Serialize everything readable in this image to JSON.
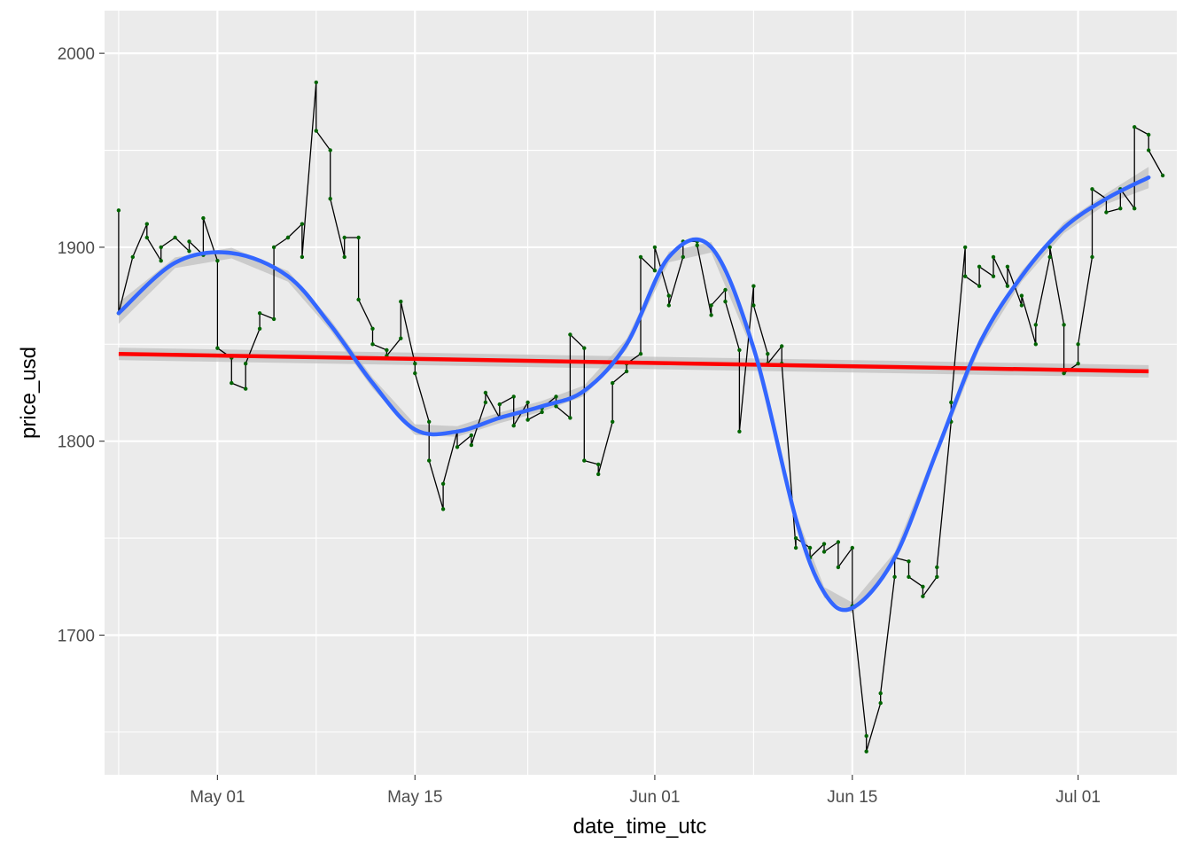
{
  "chart_data": {
    "type": "line",
    "title": "",
    "xlabel": "date_time_utc",
    "ylabel": "price_usd",
    "x_ticks": [
      "May 01",
      "May 15",
      "Jun 01",
      "Jun 15",
      "Jul 01"
    ],
    "x_tick_dates": [
      "2023-05-01",
      "2023-05-15",
      "2023-06-01",
      "2023-06-15",
      "2023-07-01"
    ],
    "y_ticks": [
      1700,
      1800,
      1900,
      2000
    ],
    "xlim": [
      "2023-04-23",
      "2023-07-08"
    ],
    "ylim": [
      1628,
      2022
    ],
    "grid": true,
    "legend": "none",
    "colors": {
      "panel": "#ebebeb",
      "grid": "#ffffff",
      "price_line": "#000000",
      "price_points": "#006400",
      "smooth": "#3366ff",
      "linear": "#ff0000",
      "confidence_band": "#bdbdbd"
    },
    "series": [
      {
        "kind": "price",
        "x": [
          "2023-04-24",
          "2023-04-24",
          "2023-04-25",
          "2023-04-26",
          "2023-04-26",
          "2023-04-27",
          "2023-04-27",
          "2023-04-28",
          "2023-04-29",
          "2023-04-29",
          "2023-04-30",
          "2023-04-30",
          "2023-05-01",
          "2023-05-01",
          "2023-05-02",
          "2023-05-02",
          "2023-05-03",
          "2023-05-03",
          "2023-05-04",
          "2023-05-04",
          "2023-05-05",
          "2023-05-05",
          "2023-05-06",
          "2023-05-06",
          "2023-05-07",
          "2023-05-07",
          "2023-05-08",
          "2023-05-08",
          "2023-05-09",
          "2023-05-09",
          "2023-05-10",
          "2023-05-10",
          "2023-05-11",
          "2023-05-11",
          "2023-05-12",
          "2023-05-12",
          "2023-05-13",
          "2023-05-13",
          "2023-05-14",
          "2023-05-14",
          "2023-05-15",
          "2023-05-15",
          "2023-05-16",
          "2023-05-16",
          "2023-05-17",
          "2023-05-17",
          "2023-05-18",
          "2023-05-18",
          "2023-05-19",
          "2023-05-19",
          "2023-05-20",
          "2023-05-20",
          "2023-05-21",
          "2023-05-21",
          "2023-05-22",
          "2023-05-22",
          "2023-05-23",
          "2023-05-23",
          "2023-05-24",
          "2023-05-24",
          "2023-05-25",
          "2023-05-25",
          "2023-05-26",
          "2023-05-26",
          "2023-05-27",
          "2023-05-27",
          "2023-05-28",
          "2023-05-28",
          "2023-05-29",
          "2023-05-29",
          "2023-05-30",
          "2023-05-30",
          "2023-05-31",
          "2023-05-31",
          "2023-06-01",
          "2023-06-01",
          "2023-06-02",
          "2023-06-02",
          "2023-06-03",
          "2023-06-03",
          "2023-06-04",
          "2023-06-04",
          "2023-06-05",
          "2023-06-05",
          "2023-06-06",
          "2023-06-06",
          "2023-06-07",
          "2023-06-07",
          "2023-06-08",
          "2023-06-08",
          "2023-06-09",
          "2023-06-09",
          "2023-06-10",
          "2023-06-10",
          "2023-06-11",
          "2023-06-11",
          "2023-06-12",
          "2023-06-12",
          "2023-06-13",
          "2023-06-13",
          "2023-06-14",
          "2023-06-14",
          "2023-06-15",
          "2023-06-15",
          "2023-06-16",
          "2023-06-16",
          "2023-06-17",
          "2023-06-17",
          "2023-06-18",
          "2023-06-18",
          "2023-06-19",
          "2023-06-19",
          "2023-06-20",
          "2023-06-20",
          "2023-06-21",
          "2023-06-21",
          "2023-06-22",
          "2023-06-22",
          "2023-06-23",
          "2023-06-23",
          "2023-06-24",
          "2023-06-24",
          "2023-06-25",
          "2023-06-25",
          "2023-06-26",
          "2023-06-26",
          "2023-06-27",
          "2023-06-27",
          "2023-06-28",
          "2023-06-28",
          "2023-06-29",
          "2023-06-29",
          "2023-06-30",
          "2023-06-30",
          "2023-07-01",
          "2023-07-01",
          "2023-07-02",
          "2023-07-02",
          "2023-07-03",
          "2023-07-03",
          "2023-07-04",
          "2023-07-04",
          "2023-07-05",
          "2023-07-05",
          "2023-07-06",
          "2023-07-06",
          "2023-07-07"
        ],
        "y": [
          1919,
          1866,
          1895,
          1912,
          1905,
          1893,
          1900,
          1905,
          1898,
          1903,
          1896,
          1915,
          1893,
          1848,
          1843,
          1830,
          1827,
          1840,
          1858,
          1866,
          1863,
          1900,
          1905,
          1905,
          1912,
          1895,
          1985,
          1960,
          1950,
          1925,
          1895,
          1905,
          1905,
          1873,
          1858,
          1850,
          1847,
          1844,
          1853,
          1872,
          1840,
          1835,
          1810,
          1790,
          1765,
          1778,
          1805,
          1797,
          1803,
          1798,
          1820,
          1825,
          1812,
          1819,
          1823,
          1808,
          1820,
          1811,
          1815,
          1817,
          1823,
          1818,
          1812,
          1855,
          1848,
          1790,
          1788,
          1783,
          1810,
          1830,
          1836,
          1840,
          1845,
          1895,
          1888,
          1900,
          1875,
          1870,
          1895,
          1903,
          1903,
          1901,
          1865,
          1870,
          1878,
          1872,
          1847,
          1805,
          1880,
          1870,
          1845,
          1840,
          1849,
          1840,
          1745,
          1750,
          1745,
          1740,
          1747,
          1743,
          1748,
          1735,
          1745,
          1715,
          1648,
          1640,
          1665,
          1670,
          1730,
          1740,
          1738,
          1730,
          1725,
          1720,
          1730,
          1735,
          1810,
          1820,
          1900,
          1885,
          1880,
          1890,
          1885,
          1895,
          1880,
          1890,
          1870,
          1875,
          1850,
          1860,
          1895,
          1900,
          1860,
          1835,
          1840,
          1850,
          1895,
          1930,
          1925,
          1918,
          1920,
          1930,
          1920,
          1962,
          1958,
          1950,
          1937
        ]
      },
      {
        "kind": "loess",
        "x": [
          "2023-04-24",
          "2023-04-28",
          "2023-05-02",
          "2023-05-06",
          "2023-05-09",
          "2023-05-12",
          "2023-05-15",
          "2023-05-18",
          "2023-05-21",
          "2023-05-24",
          "2023-05-27",
          "2023-05-30",
          "2023-06-02",
          "2023-06-05",
          "2023-06-08",
          "2023-06-11",
          "2023-06-13",
          "2023-06-15",
          "2023-06-18",
          "2023-06-21",
          "2023-06-24",
          "2023-06-27",
          "2023-06-30",
          "2023-07-03",
          "2023-07-06"
        ],
        "y": [
          1866,
          1892,
          1897,
          1885,
          1860,
          1830,
          1806,
          1805,
          1812,
          1818,
          1826,
          1850,
          1895,
          1900,
          1848,
          1760,
          1722,
          1714,
          1740,
          1795,
          1850,
          1885,
          1910,
          1925,
          1936
        ]
      },
      {
        "kind": "linear",
        "x": [
          "2023-04-24",
          "2023-07-06"
        ],
        "y": [
          1845,
          1836
        ]
      }
    ]
  }
}
